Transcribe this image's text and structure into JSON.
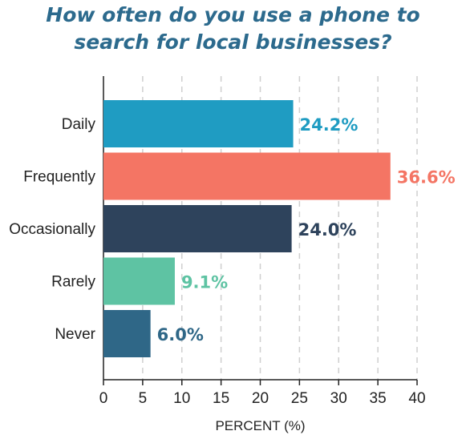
{
  "chart_data": {
    "type": "bar",
    "orientation": "horizontal",
    "title_lines": [
      "How often do you use a phone to",
      "search for local businesses?"
    ],
    "categories": [
      "Daily",
      "Frequently",
      "Occasionally",
      "Rarely",
      "Never"
    ],
    "values": [
      24.2,
      36.6,
      24.0,
      9.1,
      6.0
    ],
    "value_labels": [
      "24.2%",
      "36.6%",
      "24.0%",
      "9.1%",
      "6.0%"
    ],
    "colors": [
      "#1f9cc2",
      "#f47564",
      "#2e435c",
      "#5ec3a3",
      "#2f6787"
    ],
    "xlabel": "PERCENT (%)",
    "xlim": [
      0,
      40
    ],
    "xticks": [
      "0",
      "5",
      "10",
      "15",
      "20",
      "25",
      "30",
      "35",
      "40"
    ],
    "grid": true
  }
}
